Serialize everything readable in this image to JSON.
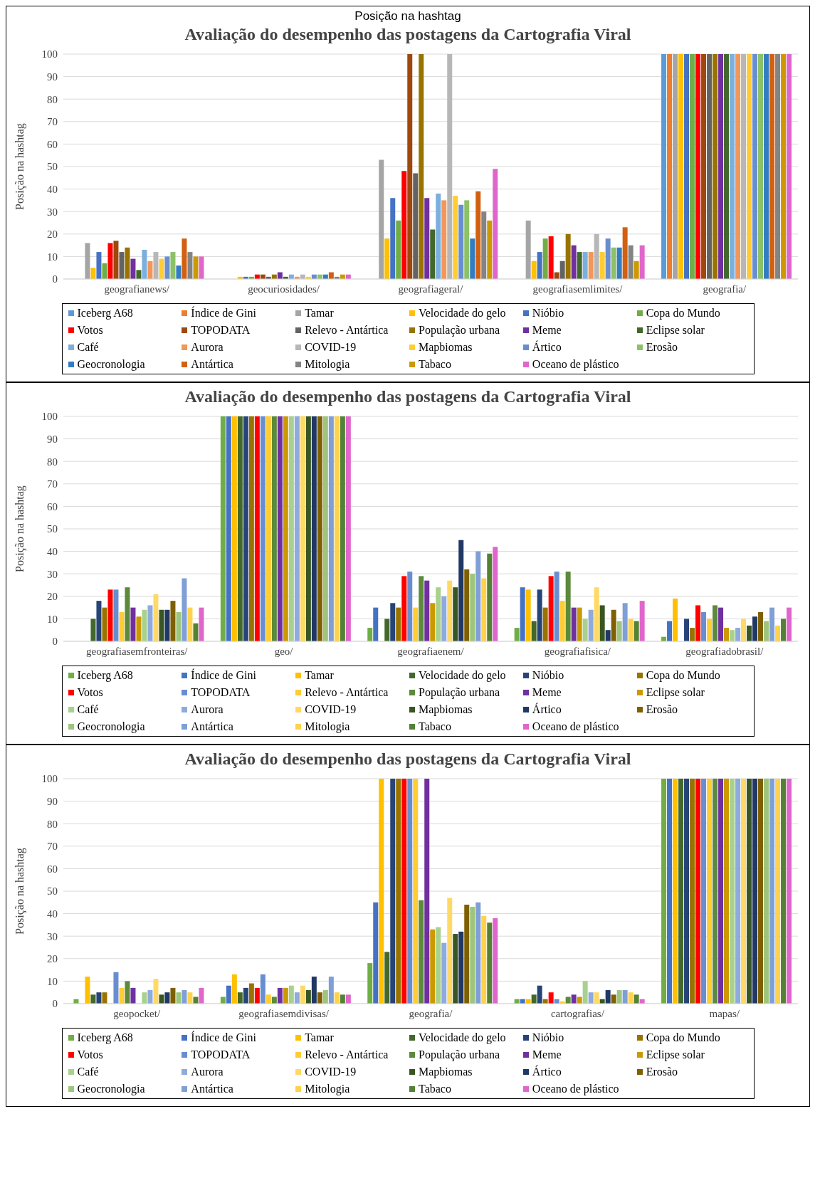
{
  "chart_data": [
    {
      "type": "bar",
      "title": "Avaliação do desempenho das postagens da Cartografia Viral",
      "ylabel": "Posição na hashtag",
      "annotations": [
        "Posição na hashtag"
      ],
      "categories": [
        "geografianews/",
        "geocuriosidades/",
        "geografiageral/",
        "geografiasemlimites/",
        "geografia/"
      ],
      "ylim": [
        0,
        100
      ],
      "yticks": [
        0,
        10,
        20,
        30,
        40,
        50,
        60,
        70,
        80,
        90,
        100
      ],
      "grid": "y",
      "legend": "bottom",
      "series": [
        {
          "name": "Iceberg A68",
          "color": "#5b9bd5",
          "values": [
            null,
            null,
            null,
            null,
            100
          ]
        },
        {
          "name": "Índice de Gini",
          "color": "#ed7d31",
          "values": [
            null,
            null,
            null,
            null,
            100
          ]
        },
        {
          "name": "Tamar",
          "color": "#a5a5a5",
          "values": [
            16,
            null,
            53,
            26,
            100
          ]
        },
        {
          "name": "Velocidade do gelo",
          "color": "#ffc000",
          "values": [
            5,
            1,
            18,
            8,
            100
          ]
        },
        {
          "name": "Nióbio",
          "color": "#4472c4",
          "values": [
            12,
            1,
            36,
            12,
            100
          ]
        },
        {
          "name": "Copa do Mundo",
          "color": "#70ad47",
          "values": [
            7,
            1,
            26,
            18,
            100
          ]
        },
        {
          "name": "Votos",
          "color": "#ff0000",
          "values": [
            16,
            2,
            48,
            19,
            100
          ]
        },
        {
          "name": "TOPODATA",
          "color": "#9e480e",
          "values": [
            17,
            2,
            100,
            3,
            100
          ]
        },
        {
          "name": "Relevo - Antártica",
          "color": "#636363",
          "values": [
            12,
            1,
            47,
            8,
            100
          ]
        },
        {
          "name": "População urbana",
          "color": "#997300",
          "values": [
            14,
            2,
            100,
            20,
            100
          ]
        },
        {
          "name": "Meme",
          "color": "#7030a0",
          "values": [
            9,
            3,
            36,
            15,
            100
          ]
        },
        {
          "name": "Eclipse solar",
          "color": "#43682b",
          "values": [
            4,
            1,
            22,
            12,
            100
          ]
        },
        {
          "name": "Café",
          "color": "#7cafdd",
          "values": [
            13,
            2,
            38,
            12,
            100
          ]
        },
        {
          "name": "Aurora",
          "color": "#f1975a",
          "values": [
            8,
            1,
            35,
            12,
            100
          ]
        },
        {
          "name": "COVID-19",
          "color": "#b7b7b7",
          "values": [
            12,
            2,
            100,
            20,
            100
          ]
        },
        {
          "name": "Mapbiomas",
          "color": "#ffcd33",
          "values": [
            9,
            1,
            37,
            12,
            100
          ]
        },
        {
          "name": "Ártico",
          "color": "#698ed0",
          "values": [
            10,
            2,
            33,
            18,
            100
          ]
        },
        {
          "name": "Erosão",
          "color": "#8cc168",
          "values": [
            12,
            2,
            35,
            14,
            100
          ]
        },
        {
          "name": "Geocronologia",
          "color": "#327dc2",
          "values": [
            6,
            2,
            18,
            14,
            100
          ]
        },
        {
          "name": "Antártica",
          "color": "#d26012",
          "values": [
            18,
            3,
            39,
            23,
            100
          ]
        },
        {
          "name": "Mitologia",
          "color": "#848484",
          "values": [
            12,
            1,
            30,
            15,
            100
          ]
        },
        {
          "name": "Tabaco",
          "color": "#cc9a00",
          "values": [
            10,
            2,
            26,
            8,
            100
          ]
        },
        {
          "name": "Oceano de plástico",
          "color": "#e066cc",
          "values": [
            10,
            2,
            49,
            15,
            100
          ]
        }
      ]
    },
    {
      "type": "bar",
      "title": "Avaliação do desempenho das postagens da Cartografia Viral",
      "ylabel": "Posição na hashtag",
      "categories": [
        "geografiasemfronteiras/",
        "geo/",
        "geografiaenem/",
        "geografiafisica/",
        "geografiadobrasil/"
      ],
      "ylim": [
        0,
        100
      ],
      "yticks": [
        0,
        10,
        20,
        30,
        40,
        50,
        60,
        70,
        80,
        90,
        100
      ],
      "grid": "y",
      "legend": "bottom",
      "series": [
        {
          "name": "Iceberg A68",
          "color": "#70ad47",
          "values": [
            null,
            100,
            6,
            6,
            2
          ]
        },
        {
          "name": "Índice de Gini",
          "color": "#4472c4",
          "values": [
            null,
            100,
            15,
            24,
            9
          ]
        },
        {
          "name": "Tamar",
          "color": "#ffc000",
          "values": [
            null,
            100,
            null,
            23,
            19
          ]
        },
        {
          "name": "Velocidade do gelo",
          "color": "#43682b",
          "values": [
            10,
            100,
            10,
            9,
            null
          ]
        },
        {
          "name": "Nióbio",
          "color": "#264478",
          "values": [
            18,
            100,
            17,
            23,
            10
          ]
        },
        {
          "name": "Copa do Mundo",
          "color": "#997300",
          "values": [
            15,
            100,
            15,
            15,
            6
          ]
        },
        {
          "name": "Votos",
          "color": "#ff0000",
          "values": [
            23,
            100,
            29,
            29,
            16
          ]
        },
        {
          "name": "TOPODATA",
          "color": "#698ed0",
          "values": [
            23,
            100,
            31,
            31,
            13
          ]
        },
        {
          "name": "Relevo - Antártica",
          "color": "#ffcd33",
          "values": [
            13,
            100,
            15,
            18,
            10
          ]
        },
        {
          "name": "População urbana",
          "color": "#5b8a3a",
          "values": [
            24,
            100,
            29,
            31,
            16
          ]
        },
        {
          "name": "Meme",
          "color": "#7030a0",
          "values": [
            15,
            100,
            27,
            15,
            15
          ]
        },
        {
          "name": "Eclipse solar",
          "color": "#cc9a00",
          "values": [
            11,
            100,
            17,
            15,
            6
          ]
        },
        {
          "name": "Café",
          "color": "#a9d18e",
          "values": [
            14,
            100,
            24,
            10,
            5
          ]
        },
        {
          "name": "Aurora",
          "color": "#8faadc",
          "values": [
            16,
            100,
            20,
            14,
            6
          ]
        },
        {
          "name": "COVID-19",
          "color": "#ffd966",
          "values": [
            21,
            100,
            27,
            24,
            10
          ]
        },
        {
          "name": "Mapbiomas",
          "color": "#375623",
          "values": [
            14,
            100,
            24,
            16,
            7
          ]
        },
        {
          "name": "Ártico",
          "color": "#203864",
          "values": [
            14,
            100,
            45,
            5,
            11
          ]
        },
        {
          "name": "Erosão",
          "color": "#7f6000",
          "values": [
            18,
            100,
            32,
            14,
            13
          ]
        },
        {
          "name": "Geocronologia",
          "color": "#9dc67c",
          "values": [
            13,
            100,
            30,
            9,
            9
          ]
        },
        {
          "name": "Antártica",
          "color": "#7f9fd6",
          "values": [
            28,
            100,
            40,
            17,
            15
          ]
        },
        {
          "name": "Mitologia",
          "color": "#ffd24d",
          "values": [
            15,
            100,
            28,
            10,
            7
          ]
        },
        {
          "name": "Tabaco",
          "color": "#548235",
          "values": [
            8,
            100,
            39,
            9,
            10
          ]
        },
        {
          "name": "Oceano de plástico",
          "color": "#e066cc",
          "values": [
            15,
            100,
            42,
            18,
            15
          ]
        }
      ]
    },
    {
      "type": "bar",
      "title": "Avaliação do desempenho das postagens da Cartografia Viral",
      "ylabel": "Posição na hashtag",
      "categories": [
        "geopocket/",
        "geografiasemdivisas/",
        "geografia/",
        "cartografias/",
        "mapas/"
      ],
      "ylim": [
        0,
        100
      ],
      "yticks": [
        0,
        10,
        20,
        30,
        40,
        50,
        60,
        70,
        80,
        90,
        100
      ],
      "grid": "y",
      "legend": "bottom",
      "series": [
        {
          "name": "Iceberg A68",
          "color": "#70ad47",
          "values": [
            2,
            3,
            18,
            2,
            100
          ]
        },
        {
          "name": "Índice de Gini",
          "color": "#4472c4",
          "values": [
            null,
            8,
            45,
            2,
            100
          ]
        },
        {
          "name": "Tamar",
          "color": "#ffc000",
          "values": [
            12,
            13,
            100,
            2,
            100
          ]
        },
        {
          "name": "Velocidade do gelo",
          "color": "#43682b",
          "values": [
            4,
            5,
            23,
            4,
            100
          ]
        },
        {
          "name": "Nióbio",
          "color": "#264478",
          "values": [
            5,
            7,
            100,
            8,
            100
          ]
        },
        {
          "name": "Copa do Mundo",
          "color": "#997300",
          "values": [
            5,
            9,
            100,
            2,
            100
          ]
        },
        {
          "name": "Votos",
          "color": "#ff0000",
          "values": [
            null,
            7,
            100,
            5,
            100
          ]
        },
        {
          "name": "TOPODATA",
          "color": "#698ed0",
          "values": [
            14,
            13,
            100,
            2,
            100
          ]
        },
        {
          "name": "Relevo - Antártica",
          "color": "#ffcd33",
          "values": [
            7,
            4,
            100,
            1,
            100
          ]
        },
        {
          "name": "População urbana",
          "color": "#5b8a3a",
          "values": [
            10,
            3,
            46,
            3,
            100
          ]
        },
        {
          "name": "Meme",
          "color": "#7030a0",
          "values": [
            7,
            7,
            100,
            4,
            100
          ]
        },
        {
          "name": "Eclipse solar",
          "color": "#cc9a00",
          "values": [
            null,
            7,
            33,
            3,
            100
          ]
        },
        {
          "name": "Café",
          "color": "#a9d18e",
          "values": [
            5,
            8,
            34,
            10,
            100
          ]
        },
        {
          "name": "Aurora",
          "color": "#8faadc",
          "values": [
            6,
            5,
            27,
            5,
            100
          ]
        },
        {
          "name": "COVID-19",
          "color": "#ffd966",
          "values": [
            11,
            8,
            47,
            5,
            100
          ]
        },
        {
          "name": "Mapbiomas",
          "color": "#375623",
          "values": [
            4,
            6,
            31,
            2,
            100
          ]
        },
        {
          "name": "Ártico",
          "color": "#203864",
          "values": [
            5,
            12,
            32,
            6,
            100
          ]
        },
        {
          "name": "Erosão",
          "color": "#7f6000",
          "values": [
            7,
            5,
            44,
            4,
            100
          ]
        },
        {
          "name": "Geocronologia",
          "color": "#9dc67c",
          "values": [
            5,
            6,
            43,
            6,
            100
          ]
        },
        {
          "name": "Antártica",
          "color": "#7f9fd6",
          "values": [
            6,
            12,
            45,
            6,
            100
          ]
        },
        {
          "name": "Mitologia",
          "color": "#ffd24d",
          "values": [
            5,
            5,
            39,
            5,
            100
          ]
        },
        {
          "name": "Tabaco",
          "color": "#548235",
          "values": [
            3,
            4,
            36,
            4,
            100
          ]
        },
        {
          "name": "Oceano de plástico",
          "color": "#e066cc",
          "values": [
            7,
            4,
            38,
            2,
            100
          ]
        }
      ]
    }
  ]
}
